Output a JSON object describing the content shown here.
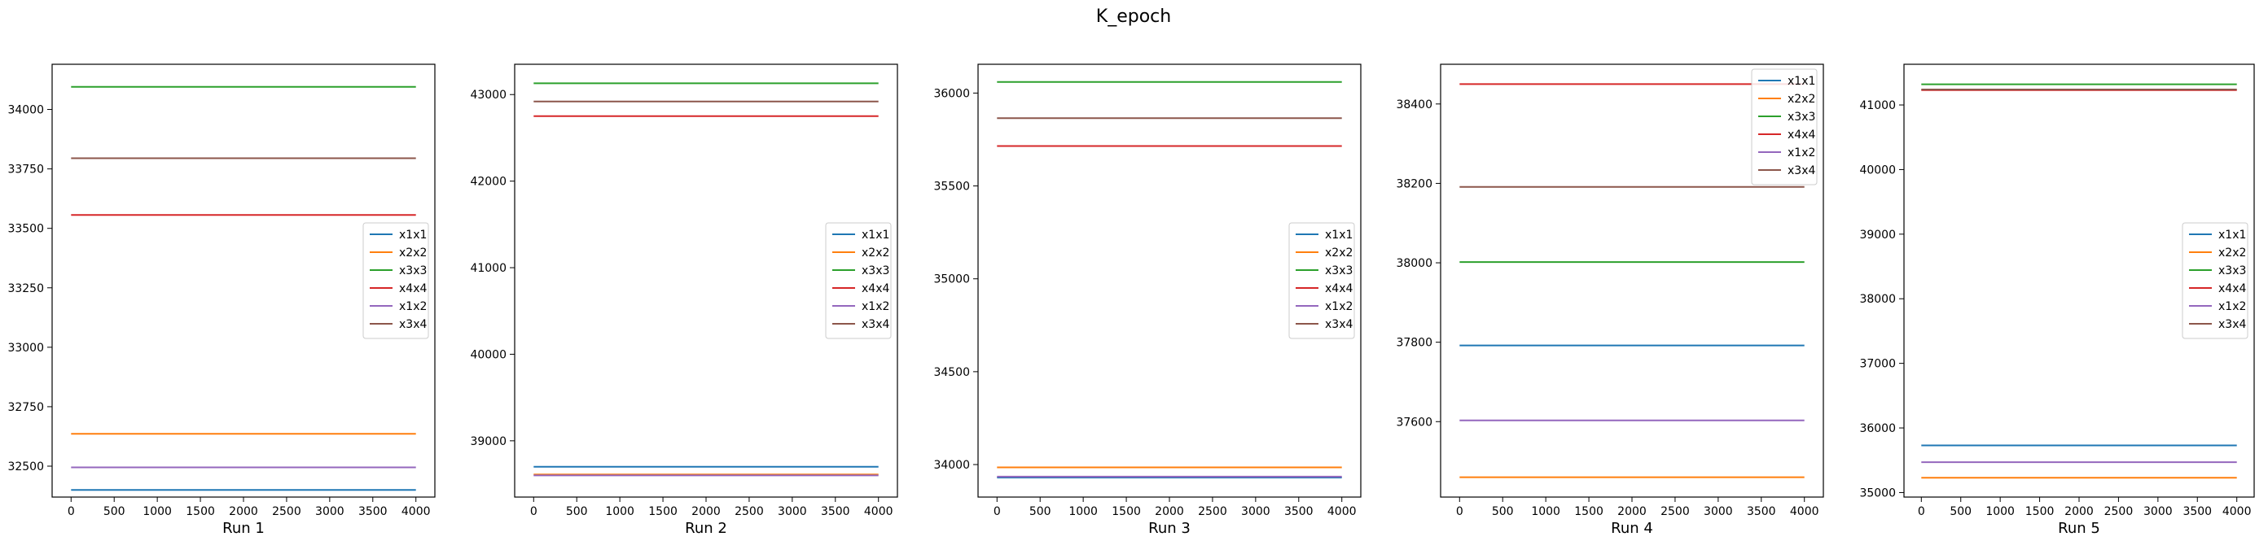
{
  "figure": {
    "title": "K_epoch"
  },
  "colors": {
    "x1x1": "#1f77b4",
    "x2x2": "#ff7f0e",
    "x3x3": "#2ca02c",
    "x4x4": "#d62728",
    "x1x2": "#9467bd",
    "x3x4": "#8c564b"
  },
  "chart_data": [
    {
      "type": "line",
      "xlabel": "Run 1",
      "x": [
        0,
        4000
      ],
      "xlim": [
        -220,
        4220
      ],
      "xticks": [
        0,
        500,
        1000,
        1500,
        2000,
        2500,
        3000,
        3500,
        4000
      ],
      "ylim": [
        32370,
        34190
      ],
      "yticks": [
        32500,
        32750,
        33000,
        33250,
        33500,
        33750,
        34000
      ],
      "legend": {
        "loc": "center right"
      },
      "series": [
        {
          "name": "x1x1",
          "values": [
            32400,
            32400
          ]
        },
        {
          "name": "x2x2",
          "values": [
            32636,
            32636
          ]
        },
        {
          "name": "x3x3",
          "values": [
            34095,
            34095
          ]
        },
        {
          "name": "x4x4",
          "values": [
            33556,
            33556
          ]
        },
        {
          "name": "x1x2",
          "values": [
            32495,
            32495
          ]
        },
        {
          "name": "x3x4",
          "values": [
            33795,
            33795
          ]
        }
      ]
    },
    {
      "type": "line",
      "xlabel": "Run 2",
      "x": [
        0,
        4000
      ],
      "xlim": [
        -220,
        4220
      ],
      "xticks": [
        0,
        500,
        1000,
        1500,
        2000,
        2500,
        3000,
        3500,
        4000
      ],
      "ylim": [
        38350,
        43350
      ],
      "yticks": [
        39000,
        40000,
        41000,
        42000,
        43000
      ],
      "legend": {
        "loc": "center right"
      },
      "series": [
        {
          "name": "x1x1",
          "values": [
            38700,
            38700
          ]
        },
        {
          "name": "x2x2",
          "values": [
            38610,
            38610
          ]
        },
        {
          "name": "x3x3",
          "values": [
            43130,
            43130
          ]
        },
        {
          "name": "x4x4",
          "values": [
            42750,
            42750
          ]
        },
        {
          "name": "x1x2",
          "values": [
            38600,
            38600
          ]
        },
        {
          "name": "x3x4",
          "values": [
            42920,
            42920
          ]
        }
      ]
    },
    {
      "type": "line",
      "xlabel": "Run 3",
      "x": [
        0,
        4000
      ],
      "xlim": [
        -220,
        4220
      ],
      "xticks": [
        0,
        500,
        1000,
        1500,
        2000,
        2500,
        3000,
        3500,
        4000
      ],
      "ylim": [
        33825,
        36155
      ],
      "yticks": [
        34000,
        34500,
        35000,
        35500,
        36000
      ],
      "legend": {
        "loc": "center right"
      },
      "series": [
        {
          "name": "x1x1",
          "values": [
            33930,
            33930
          ]
        },
        {
          "name": "x2x2",
          "values": [
            33985,
            33985
          ]
        },
        {
          "name": "x3x3",
          "values": [
            36060,
            36060
          ]
        },
        {
          "name": "x4x4",
          "values": [
            35715,
            35715
          ]
        },
        {
          "name": "x1x2",
          "values": [
            33935,
            33935
          ]
        },
        {
          "name": "x3x4",
          "values": [
            35865,
            35865
          ]
        }
      ]
    },
    {
      "type": "line",
      "xlabel": "Run 4",
      "x": [
        0,
        4000
      ],
      "xlim": [
        -220,
        4220
      ],
      "xticks": [
        0,
        500,
        1000,
        1500,
        2000,
        2500,
        3000,
        3500,
        4000
      ],
      "ylim": [
        37410,
        38500
      ],
      "yticks": [
        37600,
        37800,
        38000,
        38200,
        38400
      ],
      "legend": {
        "loc": "upper right"
      },
      "series": [
        {
          "name": "x1x1",
          "values": [
            37792,
            37792
          ]
        },
        {
          "name": "x2x2",
          "values": [
            37460,
            37460
          ]
        },
        {
          "name": "x3x3",
          "values": [
            38002,
            38002
          ]
        },
        {
          "name": "x4x4",
          "values": [
            38450,
            38450
          ]
        },
        {
          "name": "x1x2",
          "values": [
            37603,
            37603
          ]
        },
        {
          "name": "x3x4",
          "values": [
            38191,
            38191
          ]
        }
      ]
    },
    {
      "type": "line",
      "xlabel": "Run 5",
      "x": [
        0,
        4000
      ],
      "xlim": [
        -220,
        4220
      ],
      "xticks": [
        0,
        500,
        1000,
        1500,
        2000,
        2500,
        3000,
        3500,
        4000
      ],
      "ylim": [
        34930,
        41630
      ],
      "yticks": [
        35000,
        36000,
        37000,
        38000,
        39000,
        40000,
        41000
      ],
      "legend": {
        "loc": "center right"
      },
      "series": [
        {
          "name": "x1x1",
          "values": [
            35730,
            35730
          ]
        },
        {
          "name": "x2x2",
          "values": [
            35230,
            35230
          ]
        },
        {
          "name": "x3x3",
          "values": [
            41320,
            41320
          ]
        },
        {
          "name": "x4x4",
          "values": [
            41230,
            41230
          ]
        },
        {
          "name": "x1x2",
          "values": [
            35470,
            35470
          ]
        },
        {
          "name": "x3x4",
          "values": [
            41240,
            41240
          ]
        }
      ]
    }
  ]
}
